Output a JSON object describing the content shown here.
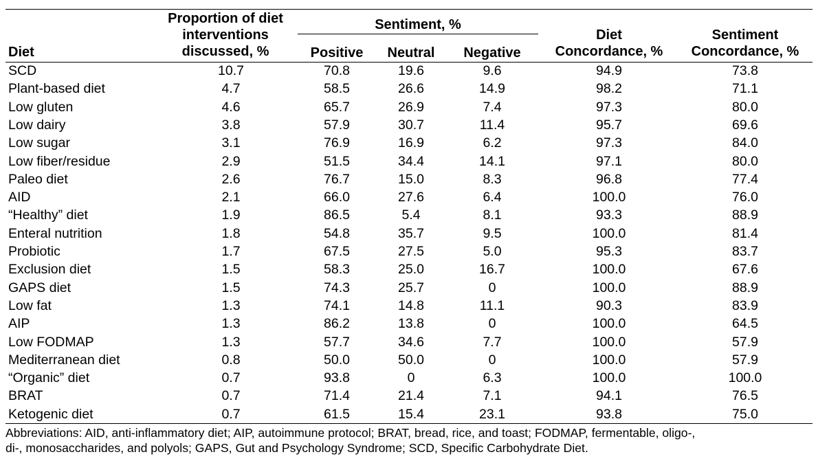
{
  "table": {
    "headers": {
      "diet": "Diet",
      "proportion": [
        "Proportion of diet",
        "interventions",
        "discussed, %"
      ],
      "sentiment_group": "Sentiment, %",
      "positive": "Positive",
      "neutral": "Neutral",
      "negative": "Negative",
      "diet_concordance": [
        "Diet",
        "Concordance, %"
      ],
      "sentiment_concordance": [
        "Sentiment",
        "Concordance, %"
      ]
    },
    "rows": [
      [
        "SCD",
        "10.7",
        "70.8",
        "19.6",
        "9.6",
        "94.9",
        "73.8"
      ],
      [
        "Plant-based diet",
        "4.7",
        "58.5",
        "26.6",
        "14.9",
        "98.2",
        "71.1"
      ],
      [
        "Low gluten",
        "4.6",
        "65.7",
        "26.9",
        "7.4",
        "97.3",
        "80.0"
      ],
      [
        "Low dairy",
        "3.8",
        "57.9",
        "30.7",
        "11.4",
        "95.7",
        "69.6"
      ],
      [
        "Low sugar",
        "3.1",
        "76.9",
        "16.9",
        "6.2",
        "97.3",
        "84.0"
      ],
      [
        "Low fiber/residue",
        "2.9",
        "51.5",
        "34.4",
        "14.1",
        "97.1",
        "80.0"
      ],
      [
        "Paleo diet",
        "2.6",
        "76.7",
        "15.0",
        "8.3",
        "96.8",
        "77.4"
      ],
      [
        "AID",
        "2.1",
        "66.0",
        "27.6",
        "6.4",
        "100.0",
        "76.0"
      ],
      [
        "“Healthy” diet",
        "1.9",
        "86.5",
        "5.4",
        "8.1",
        "93.3",
        "88.9"
      ],
      [
        "Enteral nutrition",
        "1.8",
        "54.8",
        "35.7",
        "9.5",
        "100.0",
        "81.4"
      ],
      [
        "Probiotic",
        "1.7",
        "67.5",
        "27.5",
        "5.0",
        "95.3",
        "83.7"
      ],
      [
        "Exclusion diet",
        "1.5",
        "58.3",
        "25.0",
        "16.7",
        "100.0",
        "67.6"
      ],
      [
        "GAPS diet",
        "1.5",
        "74.3",
        "25.7",
        "0",
        "100.0",
        "88.9"
      ],
      [
        "Low fat",
        "1.3",
        "74.1",
        "14.8",
        "11.1",
        "90.3",
        "83.9"
      ],
      [
        "AIP",
        "1.3",
        "86.2",
        "13.8",
        "0",
        "100.0",
        "64.5"
      ],
      [
        "Low FODMAP",
        "1.3",
        "57.7",
        "34.6",
        "7.7",
        "100.0",
        "57.9"
      ],
      [
        "Mediterranean diet",
        "0.8",
        "50.0",
        "50.0",
        "0",
        "100.0",
        "57.9"
      ],
      [
        "“Organic” diet",
        "0.7",
        "93.8",
        "0",
        "6.3",
        "100.0",
        "100.0"
      ],
      [
        "BRAT",
        "0.7",
        "71.4",
        "21.4",
        "7.1",
        "94.1",
        "76.5"
      ],
      [
        "Ketogenic diet",
        "0.7",
        "61.5",
        "15.4",
        "23.1",
        "93.8",
        "75.0"
      ]
    ],
    "footnote": [
      "Abbreviations: AID, anti-inflammatory diet; AIP, autoimmune protocol; BRAT, bread, rice, and toast; FODMAP, fermentable, oligo-,",
      "di-, monosaccharides, and polyols; GAPS, Gut and Psychology Syndrome; SCD, Specific Carbohydrate Diet."
    ]
  }
}
